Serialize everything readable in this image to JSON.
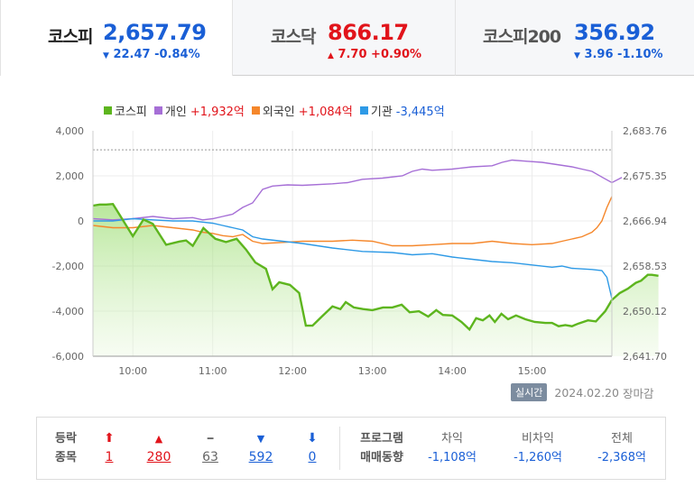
{
  "tabs": [
    {
      "name": "코스피",
      "value": "2,657.79",
      "arrow": "▼",
      "change": "22.47 -0.84%",
      "dir": "down",
      "active": true
    },
    {
      "name": "코스닥",
      "value": "866.17",
      "arrow": "▲",
      "change": "7.70 +0.90%",
      "dir": "up",
      "active": false
    },
    {
      "name": "코스피200",
      "value": "356.92",
      "arrow": "▼",
      "change": "3.96 -1.10%",
      "dir": "down",
      "active": false
    }
  ],
  "legend": [
    {
      "label": "코스피",
      "value": "",
      "color": "#5db51e"
    },
    {
      "label": "개인",
      "value": "+1,932억",
      "color": "#a66fd6"
    },
    {
      "label": "외국인",
      "value": "+1,084억",
      "color": "#f5872b"
    },
    {
      "label": "기관",
      "value": "-3,445억",
      "color": "#2e9ae6"
    }
  ],
  "status": {
    "badge": "실시간",
    "date": "2024.02.20",
    "state": "장마감"
  },
  "breadth": {
    "label_top": "등락",
    "label_bottom": "종목",
    "items": [
      {
        "arrow": "⬆",
        "count": "1",
        "color": "#e1141b"
      },
      {
        "arrow": "▲",
        "count": "280",
        "color": "#e1141b"
      },
      {
        "arrow": "━",
        "count": "63",
        "color": "#666666"
      },
      {
        "arrow": "▼",
        "count": "592",
        "color": "#1a5fd6"
      },
      {
        "arrow": "⬇",
        "count": "0",
        "color": "#1a5fd6"
      }
    ]
  },
  "program": {
    "label_top": "프로그램",
    "label_bottom": "매매동향",
    "cols": [
      {
        "head": "차익",
        "value": "-1,108억"
      },
      {
        "head": "비차익",
        "value": "-1,260억"
      },
      {
        "head": "전체",
        "value": "-2,368억"
      }
    ]
  },
  "chart_data": {
    "type": "line",
    "x_ticks": [
      "10:00",
      "11:00",
      "12:00",
      "13:00",
      "14:00",
      "15:00"
    ],
    "x_range_minutes": [
      0,
      390
    ],
    "y_left_ticks": [
      "4,000",
      "2,000",
      "0",
      "-2,000",
      "-4,000",
      "-6,000"
    ],
    "y_left_range": [
      -6000,
      4000
    ],
    "y_right_ticks": [
      "2,683.76",
      "2,675.35",
      "2,666.94",
      "2,658.53",
      "2,650.12",
      "2,641.70"
    ],
    "y_right_range": [
      2641.7,
      2683.76
    ],
    "reference_line_index": 2680.2,
    "index_series": {
      "name": "코스피",
      "color": "#5db51e",
      "points": [
        [
          0,
          2669.8
        ],
        [
          5,
          2670.0
        ],
        [
          10,
          2670.0
        ],
        [
          15,
          2670.1
        ],
        [
          20,
          2668.1
        ],
        [
          30,
          2664.1
        ],
        [
          38,
          2667.2
        ],
        [
          45,
          2666.4
        ],
        [
          55,
          2662.5
        ],
        [
          65,
          2663.1
        ],
        [
          70,
          2663.3
        ],
        [
          75,
          2662.3
        ],
        [
          83,
          2665.6
        ],
        [
          92,
          2663.6
        ],
        [
          100,
          2663.0
        ],
        [
          108,
          2663.6
        ],
        [
          115,
          2661.6
        ],
        [
          122,
          2659.2
        ],
        [
          130,
          2658.0
        ],
        [
          135,
          2654.2
        ],
        [
          140,
          2655.5
        ],
        [
          148,
          2655.0
        ],
        [
          155,
          2653.5
        ],
        [
          160,
          2647.4
        ],
        [
          165,
          2647.4
        ],
        [
          172,
          2649.1
        ],
        [
          180,
          2651.0
        ],
        [
          186,
          2650.5
        ],
        [
          190,
          2651.8
        ],
        [
          196,
          2650.8
        ],
        [
          203,
          2650.5
        ],
        [
          210,
          2650.3
        ],
        [
          218,
          2650.8
        ],
        [
          225,
          2650.8
        ],
        [
          232,
          2651.3
        ],
        [
          238,
          2649.9
        ],
        [
          245,
          2650.1
        ],
        [
          252,
          2649.1
        ],
        [
          258,
          2650.3
        ],
        [
          263,
          2649.4
        ],
        [
          270,
          2649.3
        ],
        [
          277,
          2648.1
        ],
        [
          283,
          2646.7
        ],
        [
          288,
          2648.8
        ],
        [
          293,
          2648.4
        ],
        [
          298,
          2649.3
        ],
        [
          302,
          2648.1
        ],
        [
          307,
          2649.6
        ],
        [
          312,
          2648.6
        ],
        [
          318,
          2649.3
        ],
        [
          325,
          2648.6
        ],
        [
          332,
          2648.1
        ],
        [
          340,
          2647.9
        ],
        [
          345,
          2647.9
        ],
        [
          350,
          2647.3
        ],
        [
          355,
          2647.5
        ],
        [
          360,
          2647.3
        ],
        [
          365,
          2647.8
        ],
        [
          372,
          2648.4
        ],
        [
          378,
          2648.2
        ],
        [
          385,
          2650.1
        ],
        [
          390,
          2652.2
        ],
        [
          396,
          2653.5
        ],
        [
          402,
          2654.3
        ],
        [
          408,
          2655.4
        ],
        [
          412,
          2655.8
        ],
        [
          417,
          2656.9
        ],
        [
          420,
          2656.9
        ],
        [
          425,
          2656.7
        ]
      ]
    },
    "flow_series": [
      {
        "name": "개인",
        "color": "#a66fd6",
        "points": [
          [
            0,
            100
          ],
          [
            20,
            50
          ],
          [
            40,
            100
          ],
          [
            60,
            200
          ],
          [
            80,
            100
          ],
          [
            100,
            150
          ],
          [
            110,
            50
          ],
          [
            120,
            100
          ],
          [
            130,
            200
          ],
          [
            140,
            300
          ],
          [
            150,
            600
          ],
          [
            160,
            800
          ],
          [
            170,
            1400
          ],
          [
            180,
            1550
          ],
          [
            195,
            1600
          ],
          [
            210,
            1580
          ],
          [
            240,
            1650
          ],
          [
            255,
            1700
          ],
          [
            270,
            1850
          ],
          [
            290,
            1900
          ],
          [
            310,
            2000
          ],
          [
            320,
            2200
          ],
          [
            330,
            2300
          ],
          [
            340,
            2250
          ],
          [
            360,
            2300
          ],
          [
            380,
            2400
          ],
          [
            400,
            2450
          ],
          [
            410,
            2600
          ],
          [
            420,
            2700
          ],
          [
            435,
            2650
          ],
          [
            450,
            2600
          ],
          [
            465,
            2500
          ],
          [
            480,
            2400
          ],
          [
            490,
            2300
          ],
          [
            500,
            2200
          ],
          [
            510,
            1950
          ],
          [
            520,
            1700
          ],
          [
            530,
            1932
          ]
        ]
      },
      {
        "name": "외국인",
        "color": "#f5872b",
        "points": [
          [
            0,
            -200
          ],
          [
            20,
            -300
          ],
          [
            40,
            -300
          ],
          [
            60,
            -200
          ],
          [
            80,
            -300
          ],
          [
            100,
            -400
          ],
          [
            110,
            -500
          ],
          [
            120,
            -550
          ],
          [
            130,
            -650
          ],
          [
            140,
            -700
          ],
          [
            150,
            -600
          ],
          [
            160,
            -900
          ],
          [
            170,
            -1000
          ],
          [
            190,
            -950
          ],
          [
            210,
            -900
          ],
          [
            240,
            -900
          ],
          [
            260,
            -850
          ],
          [
            280,
            -900
          ],
          [
            300,
            -1100
          ],
          [
            320,
            -1100
          ],
          [
            340,
            -1050
          ],
          [
            360,
            -1000
          ],
          [
            380,
            -1000
          ],
          [
            400,
            -900
          ],
          [
            420,
            -1000
          ],
          [
            440,
            -1050
          ],
          [
            460,
            -1000
          ],
          [
            470,
            -900
          ],
          [
            480,
            -800
          ],
          [
            490,
            -700
          ],
          [
            500,
            -500
          ],
          [
            505,
            -300
          ],
          [
            510,
            0
          ],
          [
            515,
            600
          ],
          [
            520,
            1084
          ]
        ]
      },
      {
        "name": "기관",
        "color": "#2e9ae6",
        "points": [
          [
            0,
            0
          ],
          [
            20,
            0
          ],
          [
            40,
            100
          ],
          [
            60,
            50
          ],
          [
            80,
            0
          ],
          [
            100,
            0
          ],
          [
            110,
            -50
          ],
          [
            120,
            -100
          ],
          [
            130,
            -200
          ],
          [
            140,
            -300
          ],
          [
            150,
            -400
          ],
          [
            160,
            -700
          ],
          [
            170,
            -800
          ],
          [
            190,
            -900
          ],
          [
            210,
            -1000
          ],
          [
            240,
            -1200
          ],
          [
            270,
            -1350
          ],
          [
            300,
            -1400
          ],
          [
            320,
            -1500
          ],
          [
            340,
            -1450
          ],
          [
            360,
            -1600
          ],
          [
            380,
            -1700
          ],
          [
            400,
            -1800
          ],
          [
            420,
            -1850
          ],
          [
            440,
            -1950
          ],
          [
            460,
            -2050
          ],
          [
            470,
            -2000
          ],
          [
            480,
            -2100
          ],
          [
            500,
            -2150
          ],
          [
            510,
            -2200
          ],
          [
            515,
            -2500
          ],
          [
            520,
            -3445
          ]
        ]
      }
    ]
  }
}
